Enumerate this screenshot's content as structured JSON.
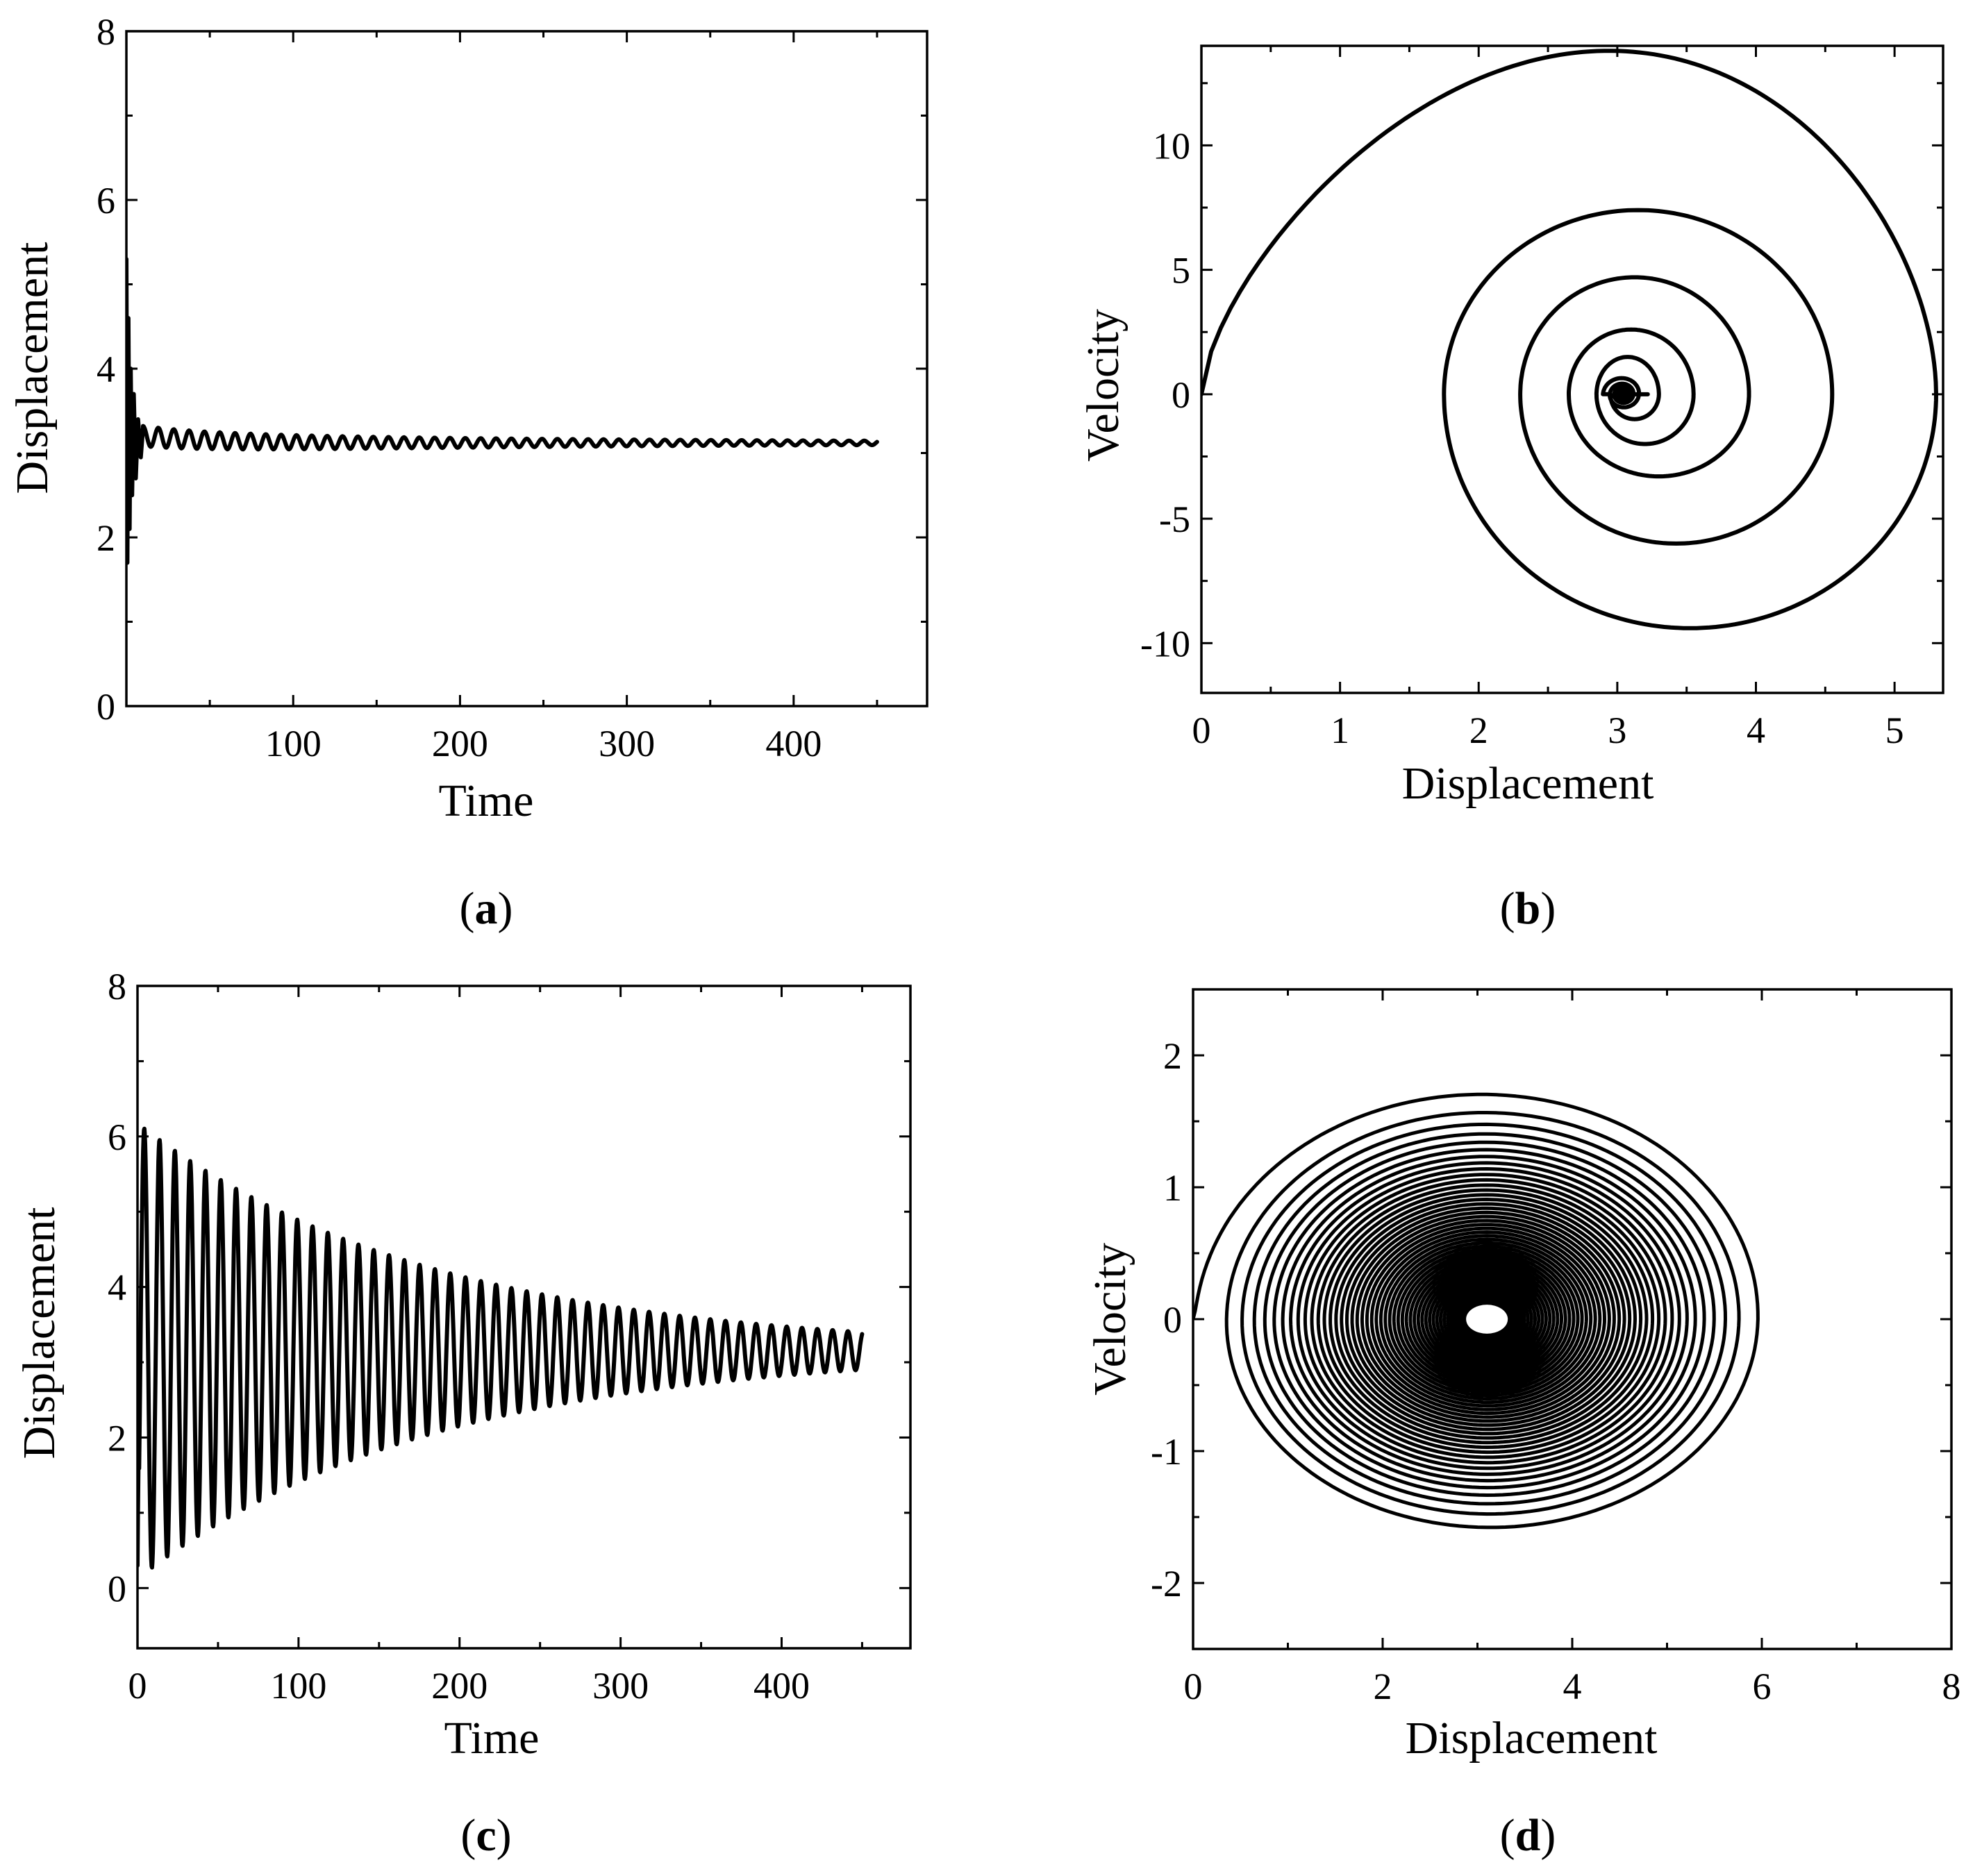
{
  "chart_data": [
    {
      "id": "a",
      "type": "line",
      "panel_label": "a",
      "xlabel": "Time",
      "ylabel": "Displacement",
      "xlim": [
        0,
        480
      ],
      "ylim": [
        0,
        8
      ],
      "xticks": [
        100,
        200,
        300,
        400
      ],
      "yticks": [
        0,
        2,
        4,
        6,
        8
      ],
      "grid": false,
      "series": [
        {
          "description_points": [
            {
              "x": 0,
              "y": 5.3
            },
            {
              "x": 1,
              "y": 1.7
            },
            {
              "x": 2,
              "y": 4.6
            },
            {
              "x": 3,
              "y": 2.3
            },
            {
              "x": 5,
              "y": 3.8
            },
            {
              "x": 8,
              "y": 2.8
            },
            {
              "x": 12,
              "y": 3.3
            },
            {
              "x": 20,
              "y": 3.25
            },
            {
              "x": 50,
              "y": 3.22
            },
            {
              "x": 100,
              "y": 3.2
            },
            {
              "x": 200,
              "y": 3.15
            },
            {
              "x": 300,
              "y": 3.13
            },
            {
              "x": 450,
              "y": 3.12
            }
          ],
          "x": [
            0,
            1,
            2,
            3,
            5,
            8,
            12,
            20,
            50,
            100,
            200,
            300,
            450
          ],
          "y": [
            5.3,
            1.7,
            4.6,
            2.3,
            3.8,
            2.8,
            3.3,
            3.25,
            3.22,
            3.2,
            3.15,
            3.13,
            3.12
          ],
          "center": 3.12,
          "amplitude_start": 0.12,
          "amplitude_end": 0.02,
          "period": 9.2,
          "t_end": 450
        }
      ]
    },
    {
      "id": "b",
      "type": "line",
      "panel_label": "b",
      "xlabel": "Displacement",
      "ylabel": "Velocity",
      "xlim": [
        0,
        5.35
      ],
      "ylim": [
        -12,
        14
      ],
      "xticks": [
        0,
        1,
        2,
        3,
        4,
        5
      ],
      "yticks": [
        -10,
        -5,
        0,
        5,
        10
      ],
      "grid": false,
      "series": [
        {
          "curve": "spiral",
          "start": [
            0,
            0
          ],
          "equilibrium": [
            3.0,
            0
          ],
          "x_right_extents": [
            5.3,
            4.55,
            3.95,
            3.55,
            3.3,
            3.15
          ],
          "x_left_extents": [
            1.75,
            2.3,
            2.65,
            2.85,
            2.95
          ],
          "v_top_extents": [
            13.8,
            7.4,
            4.7,
            2.6,
            1.5
          ],
          "v_bottom_extents": [
            -9.4,
            -6.0,
            -3.3,
            -2.0,
            -1.0
          ]
        }
      ]
    },
    {
      "id": "c",
      "type": "line",
      "panel_label": "c",
      "xlabel": "Time",
      "ylabel": "Displacement",
      "xlim": [
        0,
        480
      ],
      "ylim": [
        -0.8,
        8
      ],
      "xticks": [
        0,
        100,
        200,
        300,
        400
      ],
      "yticks": [
        0,
        2,
        4,
        6,
        8
      ],
      "grid": false,
      "series": [
        {
          "center": 3.15,
          "first_peak": 6.2,
          "first_trough": 0.15,
          "last_peak": 3.4,
          "last_trough": 2.9,
          "period": 9.5,
          "t_end": 450
        }
      ]
    },
    {
      "id": "d",
      "type": "line",
      "panel_label": "d",
      "xlabel": "Displacement",
      "ylabel": "Velocity",
      "xlim": [
        0,
        8
      ],
      "ylim": [
        -2.5,
        2.5
      ],
      "xticks": [
        0,
        2,
        4,
        6,
        8
      ],
      "yticks": [
        -2,
        -1,
        0,
        1,
        2
      ],
      "grid": false,
      "series": [
        {
          "curve": "spiral",
          "equilibrium": [
            3.1,
            0
          ],
          "outer_x_range": [
            0.0,
            6.2
          ],
          "outer_v_range": [
            -1.75,
            1.8
          ],
          "inner_x_halfwidth": 0.2,
          "inner_v_halfwidth": 0.1,
          "loops": 46
        }
      ]
    }
  ]
}
